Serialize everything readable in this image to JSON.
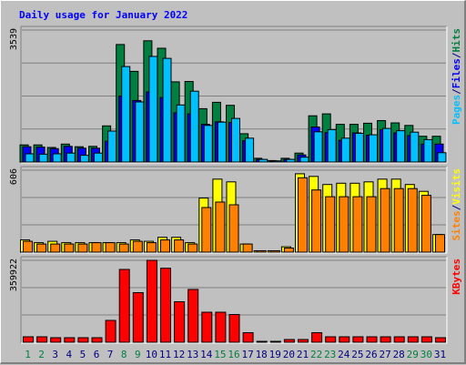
{
  "colors": {
    "hits": "#008040",
    "files": "#0000ff",
    "pages": "#00c0ff",
    "visits": "#ffff00",
    "sites": "#ff8000",
    "kbytes": "#ff0000",
    "day_weekday": "#000080",
    "day_weekend": "#008040",
    "title": "#0000ff",
    "background": "#c0c0c0",
    "panel": "#c0c0c0",
    "gridline": "#808080"
  },
  "chart_data": {
    "type": "bar",
    "title": "Daily usage for January 2022",
    "categories": [
      "1",
      "2",
      "3",
      "4",
      "5",
      "6",
      "7",
      "8",
      "9",
      "10",
      "11",
      "12",
      "13",
      "14",
      "15",
      "16",
      "17",
      "18",
      "19",
      "20",
      "21",
      "22",
      "23",
      "24",
      "25",
      "26",
      "27",
      "28",
      "29",
      "30",
      "31"
    ],
    "weekend_days": [
      "1",
      "2",
      "8",
      "9",
      "15",
      "16",
      "22",
      "23",
      "29",
      "30"
    ],
    "panels": [
      {
        "id": "hits-files-pages",
        "ymax_label": "3539",
        "ylim": [
          0,
          3539
        ],
        "legend": [
          {
            "name": "Hits",
            "color": "#008040"
          },
          {
            "name": "/",
            "color": "#000080"
          },
          {
            "name": "Files",
            "color": "#0000ff"
          },
          {
            "name": "/",
            "color": "#000080"
          },
          {
            "name": "Pages",
            "color": "#00c0ff"
          }
        ],
        "series": [
          {
            "name": "Hits",
            "color": "#008040",
            "values": [
              460,
              460,
              390,
              480,
              410,
              420,
              970,
              3150,
              2430,
              3250,
              3050,
              2150,
              2160,
              1430,
              1600,
              1520,
              760,
              100,
              40,
              100,
              240,
              1240,
              1290,
              1010,
              1010,
              1040,
              1110,
              1050,
              980,
              690,
              690
            ]
          },
          {
            "name": "Files",
            "color": "#0000ff",
            "values": [
              410,
              400,
              360,
              420,
              370,
              370,
              560,
              1770,
              1650,
              1880,
              1730,
              1320,
              1290,
              1010,
              1080,
              1060,
              570,
              70,
              30,
              70,
              190,
              940,
              790,
              580,
              780,
              720,
              870,
              780,
              710,
              480,
              480
            ]
          },
          {
            "name": "Pages",
            "color": "#00c0ff",
            "values": [
              220,
              210,
              220,
              240,
              180,
              240,
              830,
              2560,
              1610,
              2830,
              2780,
              1530,
              1900,
              980,
              1070,
              1170,
              640,
              70,
              30,
              70,
              130,
              810,
              870,
              640,
              770,
              730,
              900,
              840,
              800,
              600,
              250
            ]
          }
        ]
      },
      {
        "id": "visits-sites",
        "ymax_label": "606",
        "ylim": [
          0,
          606
        ],
        "legend": [
          {
            "name": "Visits",
            "color": "#ffff00"
          },
          {
            "name": "/",
            "color": "#000080"
          },
          {
            "name": "Sites",
            "color": "#ff8000"
          }
        ],
        "series": [
          {
            "name": "Visits",
            "color": "#ffff00",
            "values": [
              90,
              70,
              80,
              70,
              70,
              70,
              70,
              70,
              90,
              80,
              110,
              110,
              70,
              400,
              540,
              520,
              60,
              10,
              10,
              40,
              580,
              560,
              500,
              510,
              510,
              520,
              540,
              540,
              500,
              450,
              130
            ]
          },
          {
            "name": "Sites",
            "color": "#ff8000",
            "values": [
              80,
              60,
              60,
              60,
              60,
              70,
              70,
              60,
              80,
              70,
              90,
              90,
              60,
              330,
              370,
              350,
              60,
              10,
              10,
              30,
              550,
              460,
              410,
              410,
              410,
              410,
              470,
              470,
              470,
              420,
              130
            ]
          }
        ]
      },
      {
        "id": "kbytes",
        "ymax_label": "359922",
        "ylim": [
          0,
          359922
        ],
        "legend": [
          {
            "name": "KBytes",
            "color": "#ff0000"
          }
        ],
        "series": [
          {
            "name": "KBytes",
            "color": "#ff0000",
            "values": [
              24000,
              24000,
              20000,
              20000,
              20000,
              20000,
              96000,
              320000,
              218000,
              359922,
              325000,
              178000,
              232000,
              132000,
              132000,
              122000,
              42000,
              2000,
              2000,
              12000,
              12000,
              42000,
              24000,
              24000,
              24000,
              24000,
              24000,
              24000,
              24000,
              24000,
              20000
            ]
          }
        ]
      }
    ]
  }
}
